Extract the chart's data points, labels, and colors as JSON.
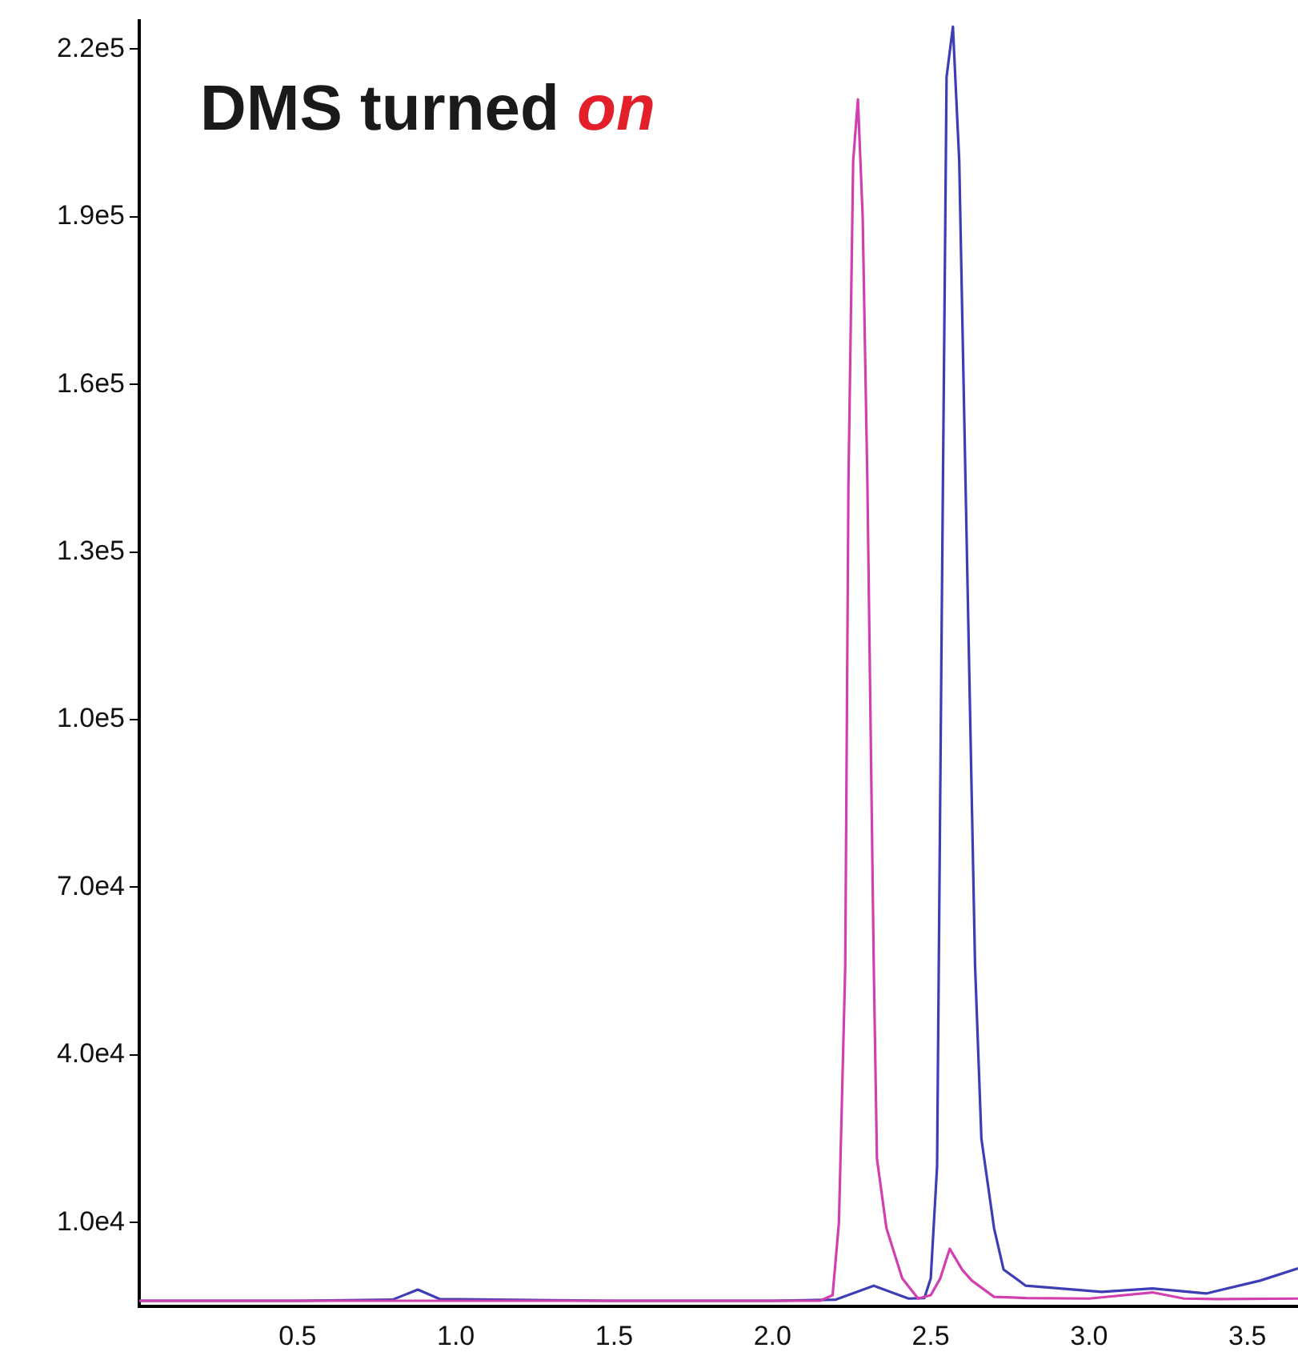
{
  "chart_data": {
    "type": "line",
    "title": "DMS turned on",
    "xlim": [
      0,
      3.66
    ],
    "xticks": [
      {
        "value": 0.5,
        "label": "0.5"
      },
      {
        "value": 1,
        "label": "1.0"
      },
      {
        "value": 1.5,
        "label": "1.5"
      },
      {
        "value": 2,
        "label": "2.0"
      },
      {
        "value": 2.5,
        "label": "2.5"
      },
      {
        "value": 3,
        "label": "3.0"
      },
      {
        "value": 3.5,
        "label": "3.5"
      }
    ],
    "ylim": [
      -5000,
      225000
    ],
    "yticks": [
      {
        "value": 10000,
        "label": "1.0e4"
      },
      {
        "value": 40000,
        "label": "4.0e4"
      },
      {
        "value": 70000,
        "label": "7.0e4"
      },
      {
        "value": 100000,
        "label": "1.0e5"
      },
      {
        "value": 130000,
        "label": "1.3e5"
      },
      {
        "value": 160000,
        "label": "1.6e5"
      },
      {
        "value": 190000,
        "label": "1.9e5"
      },
      {
        "value": 220000,
        "label": "2.2e5"
      }
    ],
    "grid": false,
    "legend": false,
    "marker": "none",
    "line_style": "solid",
    "series": [
      {
        "color": "#d23fae",
        "x": [
          0,
          0.5,
          1.0,
          1.5,
          2.0,
          2.15,
          2.19,
          2.21,
          2.23,
          2.24,
          2.255,
          2.27,
          2.285,
          2.3,
          2.32,
          2.33,
          2.36,
          2.41,
          2.46,
          2.5,
          2.53,
          2.56,
          2.6,
          2.63,
          2.7,
          2.8,
          3.0,
          3.2,
          3.3,
          3.4,
          3.66
        ],
        "values": [
          -4000,
          -4000,
          -4000,
          -4000,
          -4000,
          -4000,
          -3000,
          10000,
          56000,
          142000,
          200000,
          211000,
          190000,
          142000,
          56000,
          21500,
          9000,
          0,
          -3600,
          -3000,
          0,
          5300,
          1500,
          -400,
          -3300,
          -3500,
          -3600,
          -2500,
          -3600,
          -3700,
          -3600
        ]
      },
      {
        "color": "#3d3db5",
        "x": [
          0,
          0.5,
          0.8,
          0.88,
          0.95,
          1.5,
          2.0,
          2.2,
          2.32,
          2.43,
          2.48,
          2.5,
          2.52,
          2.535,
          2.55,
          2.57,
          2.59,
          2.61,
          2.64,
          2.66,
          2.7,
          2.73,
          2.8,
          3.04,
          3.2,
          3.37,
          3.54,
          3.66
        ],
        "values": [
          -4000,
          -4000,
          -3800,
          -2000,
          -3700,
          -4000,
          -4000,
          -3800,
          -1300,
          -3600,
          -3500,
          0,
          20000,
          120000,
          215000,
          224000,
          200000,
          142000,
          56000,
          25000,
          9000,
          1600,
          -1300,
          -2400,
          -1800,
          -2700,
          -400,
          1800
        ]
      }
    ]
  }
}
